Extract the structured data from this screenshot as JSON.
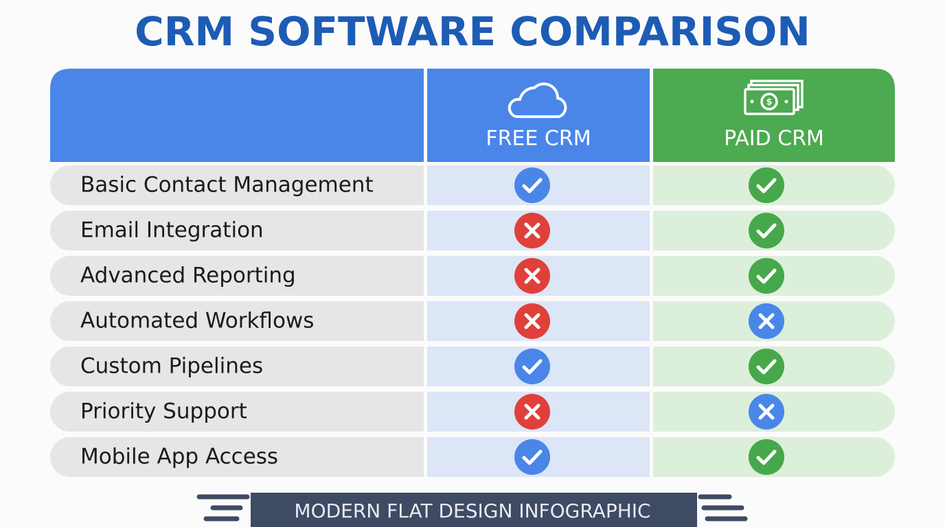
{
  "header": {
    "title": "CRM SOFTWARE COMPARISON"
  },
  "table": {
    "columns": [
      "FREE CRM",
      "PAID CRM"
    ],
    "rows": [
      {
        "feature": "Basic Contact Management",
        "free": true,
        "paid": true
      },
      {
        "feature": "Email Integration",
        "free": false,
        "paid": true
      },
      {
        "feature": "Advanced Reporting",
        "free": false,
        "paid": true
      },
      {
        "feature": "Automated Workflows",
        "free": false,
        "paid": false
      },
      {
        "feature": "Custom Pipelines",
        "free": true,
        "paid": true
      },
      {
        "feature": "Priority Support",
        "free": false,
        "paid": false
      },
      {
        "feature": "Mobile App Access",
        "free": true,
        "paid": true
      }
    ]
  },
  "footer": {
    "text": "MODERN FLAT DESIGN INFOGRAPHIC"
  }
}
